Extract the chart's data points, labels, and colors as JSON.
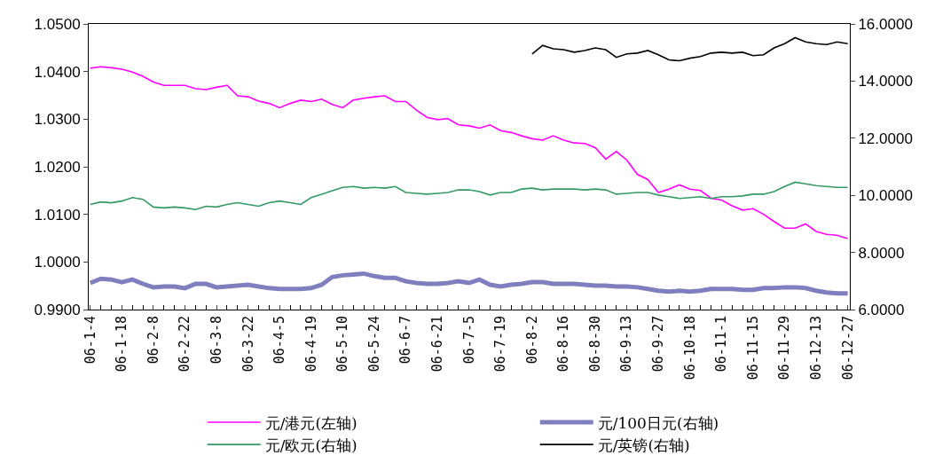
{
  "chart_data": {
    "type": "line",
    "categories": [
      "06-1-4",
      null,
      null,
      "06-1-18",
      null,
      null,
      "06-2-8",
      null,
      null,
      "06-2-22",
      null,
      null,
      "06-3-8",
      null,
      null,
      "06-3-22",
      null,
      null,
      "06-4-5",
      null,
      null,
      "06-4-19",
      null,
      null,
      "06-5-10",
      null,
      null,
      "06-5-24",
      null,
      null,
      "06-6-7",
      null,
      null,
      "06-6-21",
      null,
      null,
      "06-7-5",
      null,
      null,
      "06-7-19",
      null,
      null,
      "06-8-2",
      null,
      null,
      "06-8-16",
      null,
      null,
      "06-8-30",
      null,
      null,
      "06-9-13",
      null,
      null,
      "06-9-27",
      null,
      null,
      "06-10-18",
      null,
      null,
      "06-11-1",
      null,
      null,
      "06-11-15",
      null,
      null,
      "06-11-29",
      null,
      null,
      "06-12-13",
      null,
      null,
      "06-12-27"
    ],
    "series": [
      {
        "name": "元/港元(左轴)",
        "color": "#ff00ff",
        "axis": "y",
        "values": [
          1.0407,
          1.041,
          1.0408,
          1.0405,
          1.0399,
          1.039,
          1.0378,
          1.0371,
          1.0371,
          1.0371,
          1.0364,
          1.0362,
          1.0367,
          1.0371,
          1.0349,
          1.0347,
          1.0338,
          1.0333,
          1.0324,
          1.0333,
          1.034,
          1.0337,
          1.0342,
          1.0331,
          1.0324,
          1.034,
          1.0344,
          1.0347,
          1.0349,
          1.0337,
          1.0337,
          1.0319,
          1.0304,
          1.0299,
          1.0301,
          1.0288,
          1.0286,
          1.0281,
          1.0288,
          1.0276,
          1.0272,
          1.0265,
          1.0259,
          1.0256,
          1.0265,
          1.0256,
          1.025,
          1.0249,
          1.024,
          1.0216,
          1.0232,
          1.0214,
          1.0184,
          1.0173,
          1.0146,
          1.0153,
          1.0162,
          1.0153,
          1.015,
          1.0134,
          1.013,
          1.0118,
          1.0109,
          1.0112,
          1.01,
          1.0085,
          1.0071,
          1.0071,
          1.008,
          1.0064,
          1.0058,
          1.0056,
          1.0049
        ]
      },
      {
        "name": "元/100日元(右轴)",
        "color": "#7f7fbf",
        "axis": "y2",
        "values": [
          6.93,
          7.08,
          7.05,
          6.96,
          7.05,
          6.9,
          6.78,
          6.81,
          6.81,
          6.75,
          6.9,
          6.9,
          6.78,
          6.81,
          6.84,
          6.87,
          6.81,
          6.75,
          6.72,
          6.72,
          6.72,
          6.75,
          6.87,
          7.14,
          7.2,
          7.23,
          7.26,
          7.17,
          7.11,
          7.11,
          6.99,
          6.93,
          6.9,
          6.9,
          6.93,
          6.99,
          6.93,
          7.05,
          6.87,
          6.81,
          6.87,
          6.9,
          6.96,
          6.96,
          6.9,
          6.9,
          6.9,
          6.87,
          6.84,
          6.84,
          6.81,
          6.81,
          6.78,
          6.72,
          6.66,
          6.63,
          6.66,
          6.63,
          6.66,
          6.72,
          6.72,
          6.72,
          6.69,
          6.69,
          6.75,
          6.75,
          6.78,
          6.78,
          6.75,
          6.66,
          6.6,
          6.57,
          6.57
        ]
      },
      {
        "name": "元/欧元(右轴)",
        "color": "#339966",
        "axis": "y2",
        "values": [
          9.68,
          9.77,
          9.74,
          9.8,
          9.92,
          9.86,
          9.59,
          9.56,
          9.59,
          9.56,
          9.5,
          9.62,
          9.59,
          9.68,
          9.74,
          9.68,
          9.62,
          9.74,
          9.8,
          9.74,
          9.68,
          9.92,
          10.04,
          10.16,
          10.28,
          10.31,
          10.25,
          10.28,
          10.25,
          10.31,
          10.1,
          10.07,
          10.04,
          10.07,
          10.1,
          10.19,
          10.19,
          10.13,
          10.01,
          10.1,
          10.1,
          10.22,
          10.25,
          10.19,
          10.22,
          10.22,
          10.22,
          10.19,
          10.22,
          10.19,
          10.04,
          10.07,
          10.1,
          10.1,
          10.01,
          9.95,
          9.89,
          9.92,
          9.95,
          9.89,
          9.95,
          9.95,
          9.98,
          10.04,
          10.04,
          10.13,
          10.31,
          10.46,
          10.4,
          10.34,
          10.31,
          10.28,
          10.28
        ]
      },
      {
        "name": "元/英镑(右轴)",
        "color": "#000000",
        "axis": "y2",
        "values": [
          null,
          null,
          null,
          null,
          null,
          null,
          null,
          null,
          null,
          null,
          null,
          null,
          null,
          null,
          null,
          null,
          null,
          null,
          null,
          null,
          null,
          null,
          null,
          null,
          null,
          null,
          null,
          null,
          null,
          null,
          null,
          null,
          null,
          null,
          null,
          null,
          null,
          null,
          null,
          null,
          null,
          null,
          14.95,
          15.25,
          15.13,
          15.1,
          15.01,
          15.07,
          15.16,
          15.1,
          14.83,
          14.95,
          14.98,
          15.07,
          14.92,
          14.74,
          14.71,
          14.8,
          14.86,
          14.98,
          15.01,
          14.98,
          15.01,
          14.89,
          14.92,
          15.16,
          15.31,
          15.52,
          15.37,
          15.31,
          15.28,
          15.37,
          15.31
        ]
      }
    ],
    "ylim": [
      0.99,
      1.05
    ],
    "yticks": [
      {
        "value": 0.99,
        "label": "0.9900"
      },
      {
        "value": 1.0,
        "label": "1.0000"
      },
      {
        "value": 1.01,
        "label": "1.0100"
      },
      {
        "value": 1.02,
        "label": "1.0200"
      },
      {
        "value": 1.03,
        "label": "1.0300"
      },
      {
        "value": 1.04,
        "label": "1.0400"
      },
      {
        "value": 1.05,
        "label": "1.0500"
      }
    ],
    "y2lim": [
      6,
      16
    ],
    "y2ticks": [
      {
        "value": 6,
        "label": "6.0000"
      },
      {
        "value": 8,
        "label": "8.0000"
      },
      {
        "value": 10,
        "label": "10.0000"
      },
      {
        "value": 12,
        "label": "12.0000"
      },
      {
        "value": 14,
        "label": "14.0000"
      },
      {
        "value": 16,
        "label": "16.0000"
      }
    ],
    "legend": "bottom",
    "marker": "none",
    "line_style": "solid"
  }
}
